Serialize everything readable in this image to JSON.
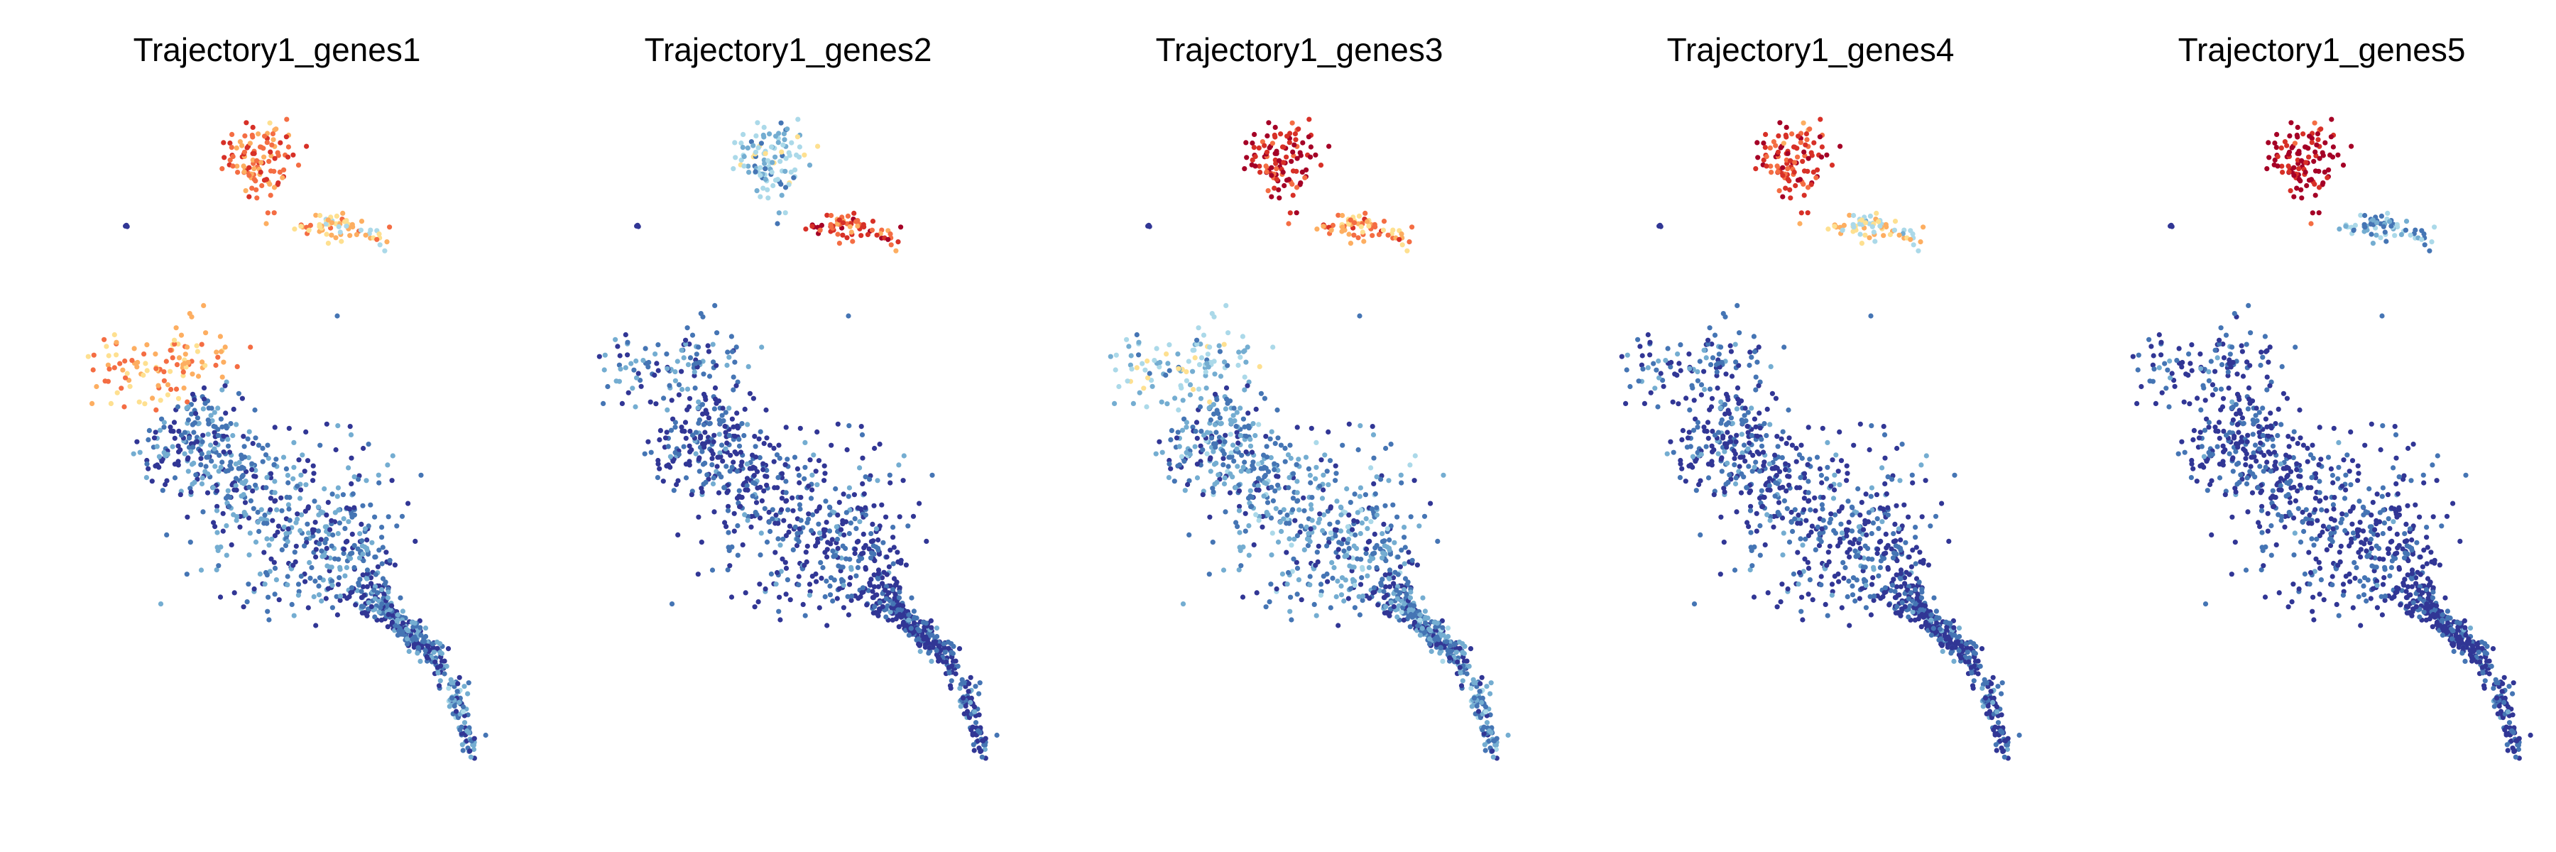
{
  "figure": {
    "panels": [
      {
        "title": "Trajectory1_genes1"
      },
      {
        "title": "Trajectory1_genes2"
      },
      {
        "title": "Trajectory1_genes3"
      },
      {
        "title": "Trajectory1_genes4"
      },
      {
        "title": "Trajectory1_genes5"
      }
    ]
  },
  "chart_data": [
    {
      "type": "scatter",
      "title": "Trajectory1_genes1",
      "xlabel": "",
      "ylabel": "",
      "grid": false,
      "axes_visible": false,
      "legend": "none",
      "colormap": [
        "#313695",
        "#4575b4",
        "#74add1",
        "#abd9e9",
        "#fee090",
        "#fdae61",
        "#f46d43",
        "#d73027",
        "#a50026"
      ],
      "regions": [
        {
          "region": "top-cluster",
          "level": 0.72
        },
        {
          "region": "right-arm",
          "level": 0.55
        },
        {
          "region": "isolated-left",
          "level": 0.05
        },
        {
          "region": "isolated-bottom",
          "level": 0.05
        },
        {
          "region": "upper-left-cluster",
          "level": 0.62
        },
        {
          "region": "main-body",
          "level": 0.12
        },
        {
          "region": "tail",
          "level": 0.18
        }
      ]
    },
    {
      "type": "scatter",
      "title": "Trajectory1_genes2",
      "xlabel": "",
      "ylabel": "",
      "grid": false,
      "axes_visible": false,
      "legend": "none",
      "colormap": [
        "#313695",
        "#4575b4",
        "#74add1",
        "#abd9e9",
        "#fee090",
        "#fdae61",
        "#f46d43",
        "#d73027",
        "#a50026"
      ],
      "regions": [
        {
          "region": "top-cluster",
          "level": 0.3
        },
        {
          "region": "right-arm",
          "level": 0.82
        },
        {
          "region": "isolated-left",
          "level": 0.02
        },
        {
          "region": "isolated-bottom",
          "level": 0.02
        },
        {
          "region": "upper-left-cluster",
          "level": 0.12
        },
        {
          "region": "main-body",
          "level": 0.04
        },
        {
          "region": "tail",
          "level": 0.08
        }
      ]
    },
    {
      "type": "scatter",
      "title": "Trajectory1_genes3",
      "xlabel": "",
      "ylabel": "",
      "grid": false,
      "axes_visible": false,
      "legend": "none",
      "colormap": [
        "#313695",
        "#4575b4",
        "#74add1",
        "#abd9e9",
        "#fee090",
        "#fdae61",
        "#f46d43",
        "#d73027",
        "#a50026"
      ],
      "regions": [
        {
          "region": "top-cluster",
          "level": 0.9
        },
        {
          "region": "right-arm",
          "level": 0.66
        },
        {
          "region": "isolated-left",
          "level": 0.02
        },
        {
          "region": "isolated-bottom",
          "level": 0.02
        },
        {
          "region": "upper-left-cluster",
          "level": 0.3
        },
        {
          "region": "main-body",
          "level": 0.16
        },
        {
          "region": "tail",
          "level": 0.2
        }
      ]
    },
    {
      "type": "scatter",
      "title": "Trajectory1_genes4",
      "xlabel": "",
      "ylabel": "",
      "grid": false,
      "axes_visible": false,
      "legend": "none",
      "colormap": [
        "#313695",
        "#4575b4",
        "#74add1",
        "#abd9e9",
        "#fee090",
        "#fdae61",
        "#f46d43",
        "#d73027",
        "#a50026"
      ],
      "regions": [
        {
          "region": "top-cluster",
          "level": 0.84
        },
        {
          "region": "right-arm",
          "level": 0.48
        },
        {
          "region": "isolated-left",
          "level": 0.02
        },
        {
          "region": "isolated-bottom",
          "level": 0.02
        },
        {
          "region": "upper-left-cluster",
          "level": 0.06
        },
        {
          "region": "main-body",
          "level": 0.05
        },
        {
          "region": "tail",
          "level": 0.08
        }
      ]
    },
    {
      "type": "scatter",
      "title": "Trajectory1_genes5",
      "xlabel": "",
      "ylabel": "",
      "grid": false,
      "axes_visible": false,
      "legend": "none",
      "colormap": [
        "#313695",
        "#4575b4",
        "#74add1",
        "#abd9e9",
        "#fee090",
        "#fdae61",
        "#f46d43",
        "#d73027",
        "#a50026"
      ],
      "regions": [
        {
          "region": "top-cluster",
          "level": 0.96
        },
        {
          "region": "right-arm",
          "level": 0.24
        },
        {
          "region": "isolated-left",
          "level": 0.02
        },
        {
          "region": "isolated-bottom",
          "level": 0.02
        },
        {
          "region": "upper-left-cluster",
          "level": 0.03
        },
        {
          "region": "main-body",
          "level": 0.02
        },
        {
          "region": "tail",
          "level": 0.04
        }
      ]
    }
  ]
}
